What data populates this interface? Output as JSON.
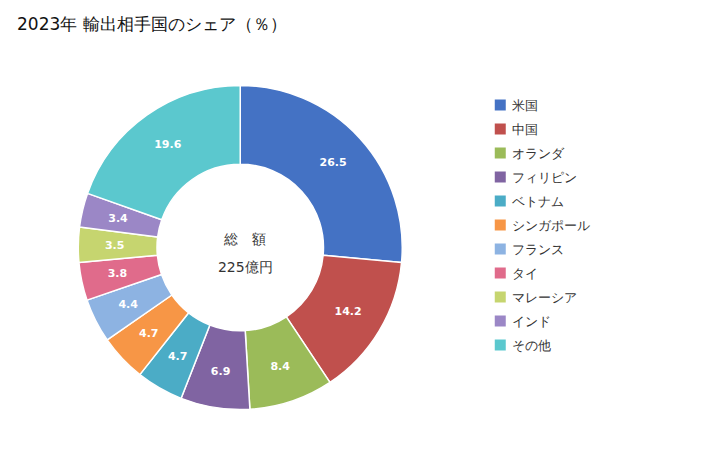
{
  "chart_data": {
    "type": "pie",
    "title": "2023年 輸出相手国のシェア（％）",
    "annotations": [
      "総　額",
      "225億円"
    ],
    "categories": [
      "米国",
      "中国",
      "オランダ",
      "フィリピン",
      "ベトナム",
      "シンガポール",
      "フランス",
      "タイ",
      "マレーシア",
      "インド",
      "その他"
    ],
    "values": [
      26.5,
      14.2,
      8.4,
      6.9,
      4.7,
      4.7,
      4.4,
      3.8,
      3.5,
      3.4,
      19.6
    ],
    "colors": [
      "#4472C4",
      "#C0504D",
      "#9BBB59",
      "#8064A2",
      "#4BACC6",
      "#F79646",
      "#8DB3E2",
      "#E06B8B",
      "#C6D56F",
      "#9B87C6",
      "#5BC8CE"
    ],
    "data_labels": true,
    "legend": "right"
  }
}
